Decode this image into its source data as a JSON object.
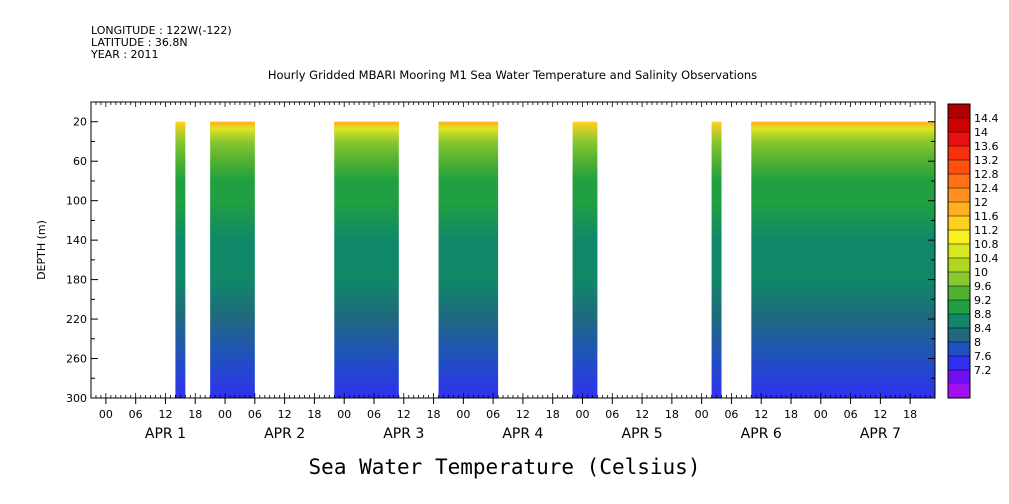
{
  "header": {
    "longitude": "LONGITUDE : 122W(-122)",
    "latitude": "LATITUDE : 36.8N",
    "year": "YEAR : 2011"
  },
  "title": "Hourly Gridded MBARI Mooring M1 Sea Water Temperature and Salinity Observations",
  "bottom_title": "Sea Water Temperature (Celsius)",
  "chart_data": {
    "type": "heatmap",
    "title": "Hourly Gridded MBARI Mooring M1 Sea Water Temperature and Salinity Observations",
    "variable": "Sea Water Temperature (Celsius)",
    "ylabel": "DEPTH (m)",
    "y_reversed": true,
    "ylim": [
      0,
      300
    ],
    "y_ticks": [
      20,
      60,
      100,
      140,
      180,
      220,
      260,
      300
    ],
    "x_range_hours": [
      -15,
      155
    ],
    "x_ticks": [
      {
        "h": -12,
        "label": "00"
      },
      {
        "h": -6,
        "label": "06"
      },
      {
        "h": 0,
        "label": "12"
      },
      {
        "h": 6,
        "label": "18"
      },
      {
        "h": 12,
        "label": "00"
      },
      {
        "h": 18,
        "label": "06"
      },
      {
        "h": 24,
        "label": "12"
      },
      {
        "h": 30,
        "label": "18"
      },
      {
        "h": 36,
        "label": "00"
      },
      {
        "h": 42,
        "label": "06"
      },
      {
        "h": 48,
        "label": "12"
      },
      {
        "h": 54,
        "label": "18"
      },
      {
        "h": 60,
        "label": "00"
      },
      {
        "h": 66,
        "label": "06"
      },
      {
        "h": 72,
        "label": "12"
      },
      {
        "h": 78,
        "label": "18"
      },
      {
        "h": 84,
        "label": "00"
      },
      {
        "h": 90,
        "label": "06"
      },
      {
        "h": 96,
        "label": "12"
      },
      {
        "h": 102,
        "label": "18"
      },
      {
        "h": 108,
        "label": "00"
      },
      {
        "h": 114,
        "label": "06"
      },
      {
        "h": 120,
        "label": "12"
      },
      {
        "h": 126,
        "label": "18"
      },
      {
        "h": 132,
        "label": "00"
      },
      {
        "h": 138,
        "label": "06"
      },
      {
        "h": 144,
        "label": "12"
      },
      {
        "h": 150,
        "label": "18"
      }
    ],
    "day_labels": [
      {
        "h": 0,
        "label": "APR  1"
      },
      {
        "h": 24,
        "label": "APR  2"
      },
      {
        "h": 48,
        "label": "APR  3"
      },
      {
        "h": 72,
        "label": "APR  4"
      },
      {
        "h": 96,
        "label": "APR  5"
      },
      {
        "h": 120,
        "label": "APR  6"
      },
      {
        "h": 144,
        "label": "APR  7"
      }
    ],
    "data_segments_hours": [
      [
        2,
        4
      ],
      [
        9,
        18
      ],
      [
        34,
        47
      ],
      [
        55,
        67
      ],
      [
        82,
        87
      ],
      [
        110,
        112
      ],
      [
        118,
        155
      ]
    ],
    "surface_warm_segments": [
      [
        9,
        18
      ],
      [
        34,
        47
      ],
      [
        55,
        67
      ],
      [
        118,
        155
      ]
    ],
    "depth_profile": [
      {
        "depth": 20,
        "temp": 11.4
      },
      {
        "depth": 40,
        "temp": 9.7
      },
      {
        "depth": 60,
        "temp": 9.4
      },
      {
        "depth": 80,
        "temp": 9.1
      },
      {
        "depth": 100,
        "temp": 8.9
      },
      {
        "depth": 140,
        "temp": 8.7
      },
      {
        "depth": 180,
        "temp": 8.5
      },
      {
        "depth": 220,
        "temp": 8.2
      },
      {
        "depth": 260,
        "temp": 7.8
      },
      {
        "depth": 300,
        "temp": 7.4
      }
    ],
    "colorbar": {
      "levels": [
        "14.4",
        "14",
        "13.6",
        "13.2",
        "12.8",
        "12.4",
        "12",
        "11.6",
        "11.2",
        "10.8",
        "10.4",
        "10",
        "9.6",
        "9.2",
        "8.8",
        "8.4",
        "8",
        "7.6",
        "7.2"
      ],
      "colors": [
        "#b00000",
        "#d00000",
        "#e81010",
        "#f83010",
        "#ff5010",
        "#ff7018",
        "#ff9020",
        "#ffb020",
        "#ffd020",
        "#f8f020",
        "#d8e820",
        "#b0d820",
        "#88c830",
        "#50b030",
        "#20a040",
        "#108868",
        "#206880",
        "#2050c0",
        "#3030f0",
        "#7010f0",
        "#a010f0"
      ]
    }
  }
}
